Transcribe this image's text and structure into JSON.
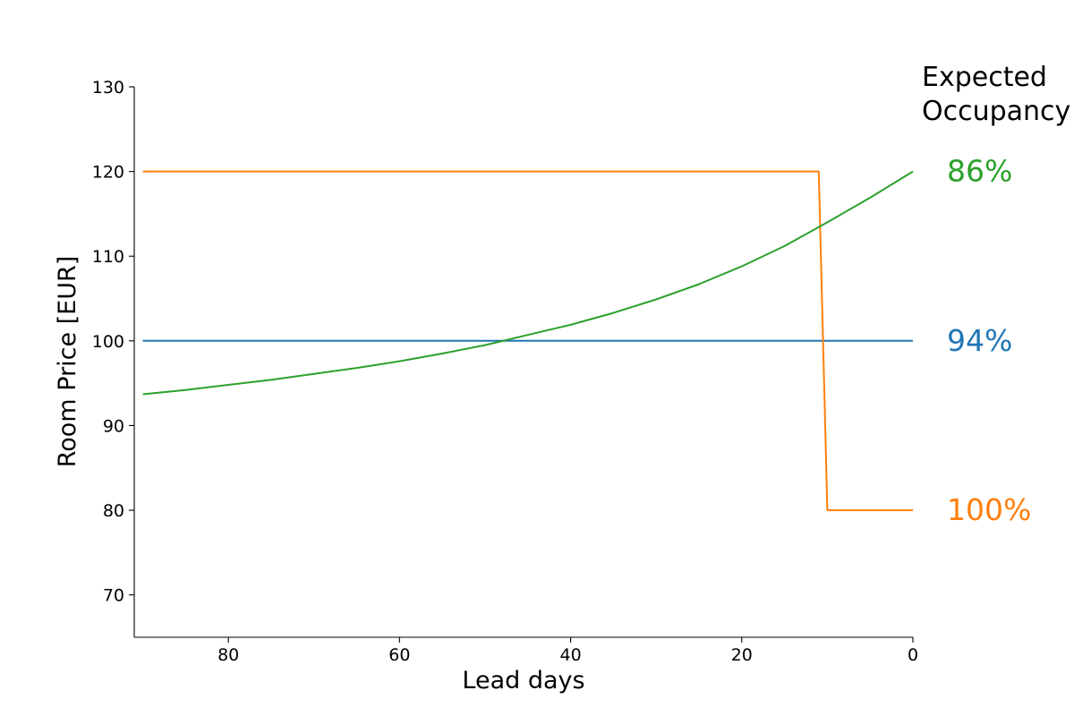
{
  "chart_data": {
    "type": "line",
    "title": "",
    "xlabel": "Lead days",
    "ylabel": "Room Price [EUR]",
    "xlim": [
      91,
      0
    ],
    "ylim": [
      65,
      130
    ],
    "x_reversed": true,
    "xticks": [
      80,
      60,
      40,
      20,
      0
    ],
    "yticks": [
      70,
      80,
      90,
      100,
      110,
      120,
      130
    ],
    "grid": false,
    "legend_title_lines": [
      "Expected",
      "Occupancy"
    ],
    "series": [
      {
        "label": "94%",
        "color": "#1f77b4",
        "points": [
          [
            90,
            100
          ],
          [
            0,
            100
          ]
        ]
      },
      {
        "label": "100%",
        "color": "#ff7f0e",
        "points": [
          [
            90,
            120
          ],
          [
            11,
            120
          ],
          [
            10,
            80
          ],
          [
            0,
            80
          ]
        ]
      },
      {
        "label": "86%",
        "color": "#2ca02c",
        "points": [
          [
            90,
            93.7
          ],
          [
            85,
            94.2
          ],
          [
            80,
            94.8
          ],
          [
            75,
            95.4
          ],
          [
            70,
            96.1
          ],
          [
            65,
            96.8
          ],
          [
            60,
            97.6
          ],
          [
            55,
            98.5
          ],
          [
            50,
            99.5
          ],
          [
            45,
            100.7
          ],
          [
            40,
            101.9
          ],
          [
            35,
            103.3
          ],
          [
            30,
            104.9
          ],
          [
            25,
            106.7
          ],
          [
            20,
            108.8
          ],
          [
            15,
            111.2
          ],
          [
            10,
            114.0
          ],
          [
            5,
            116.9
          ],
          [
            0,
            120.0
          ]
        ]
      }
    ]
  }
}
